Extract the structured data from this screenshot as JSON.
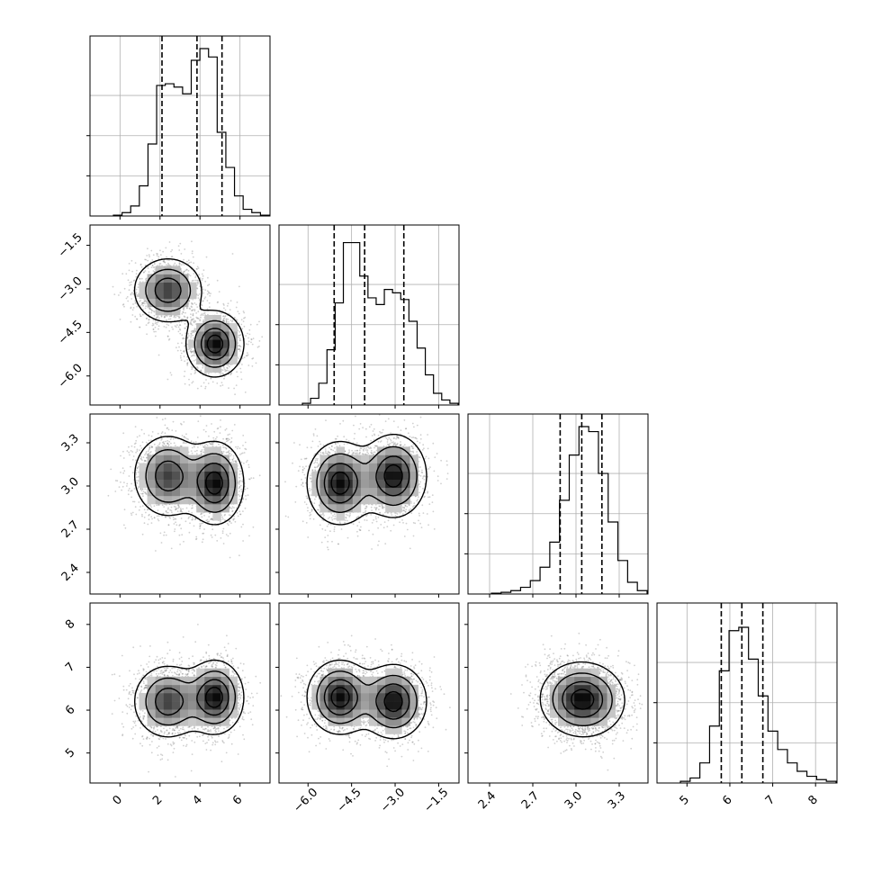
{
  "chart_data": {
    "type": "corner",
    "parameters": [
      {
        "range": [
          -1.5,
          7.5
        ],
        "ticks": [
          0,
          2,
          4,
          6
        ],
        "tick_labels": [
          "0",
          "2",
          "4",
          "6"
        ],
        "quantiles": [
          2.1,
          3.85,
          5.1
        ]
      },
      {
        "range": [
          -7.0,
          -0.8
        ],
        "ticks": [
          -6.0,
          -4.5,
          -3.0,
          -1.5
        ],
        "tick_labels": [
          "−6.0",
          "−4.5",
          "−3.0",
          "−1.5"
        ],
        "quantiles": [
          -5.1,
          -4.05,
          -2.7
        ]
      },
      {
        "range": [
          2.25,
          3.5
        ],
        "ticks": [
          2.4,
          2.7,
          3.0,
          3.3
        ],
        "tick_labels": [
          "2.4",
          "2.7",
          "3.0",
          "3.3"
        ],
        "quantiles": [
          2.89,
          3.04,
          3.18
        ]
      },
      {
        "range": [
          4.3,
          8.5
        ],
        "ticks": [
          5,
          6,
          7,
          8
        ],
        "tick_labels": [
          "5",
          "6",
          "7",
          "8"
        ],
        "quantiles": [
          5.8,
          6.28,
          6.77
        ]
      }
    ],
    "histograms": [
      [
        0.005,
        0.02,
        0.06,
        0.18,
        0.43,
        0.78,
        0.79,
        0.77,
        0.73,
        0.93,
        1.0,
        0.95,
        0.5,
        0.29,
        0.12,
        0.04,
        0.02,
        0.005
      ],
      [
        0.01,
        0.04,
        0.13,
        0.33,
        0.61,
        0.97,
        0.97,
        0.77,
        0.64,
        0.6,
        0.69,
        0.67,
        0.63,
        0.5,
        0.34,
        0.18,
        0.07,
        0.03,
        0.01
      ],
      [
        0.005,
        0.01,
        0.02,
        0.04,
        0.08,
        0.16,
        0.31,
        0.56,
        0.83,
        1.0,
        0.97,
        0.72,
        0.43,
        0.2,
        0.07,
        0.02
      ],
      [
        0.01,
        0.03,
        0.12,
        0.34,
        0.67,
        0.91,
        0.93,
        0.74,
        0.52,
        0.31,
        0.2,
        0.12,
        0.07,
        0.04,
        0.02,
        0.01
      ]
    ],
    "mixture": [
      {
        "weight": 0.5,
        "mean": [
          2.4,
          -3.05,
          3.07,
          6.2
        ],
        "sd": [
          0.85,
          0.55,
          0.14,
          0.42
        ]
      },
      {
        "weight": 0.5,
        "mean": [
          4.75,
          -4.9,
          3.02,
          6.3
        ],
        "sd": [
          0.7,
          0.55,
          0.14,
          0.42
        ]
      }
    ],
    "legend": "none",
    "grid": true
  }
}
